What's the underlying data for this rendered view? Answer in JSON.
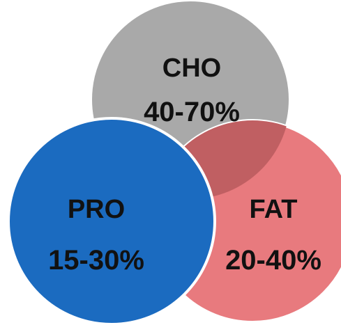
{
  "diagram": {
    "circles": [
      {
        "id": "cho",
        "name": "CHO",
        "range": "40-70%",
        "color": "#a9a9a9"
      },
      {
        "id": "fat",
        "name": "FAT",
        "range": "20-40%",
        "color": "#e87a7e"
      },
      {
        "id": "pro",
        "name": "PRO",
        "range": "15-30%",
        "color": "#1b6bc0"
      }
    ],
    "colors": {
      "overlap_cho_fat": "#c05f62",
      "outline": "#ffffff"
    }
  }
}
